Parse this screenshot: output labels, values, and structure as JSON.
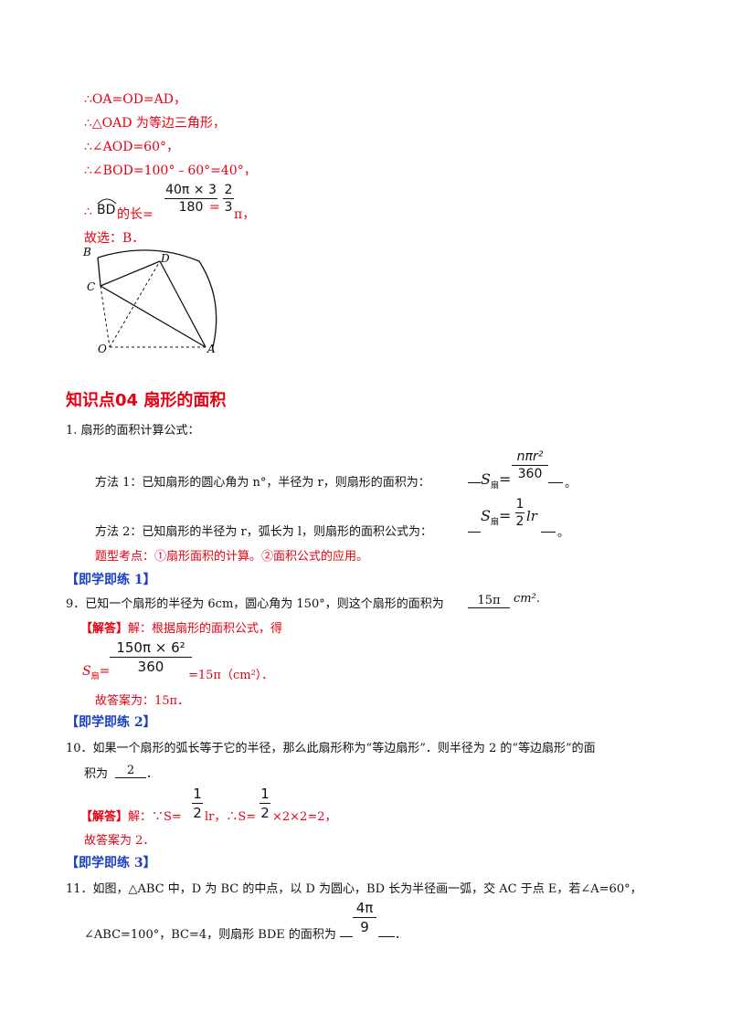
{
  "solution_prev": {
    "line1": "∴OA=OD=AD，",
    "line2": "∴△OAD 为等边三角形，",
    "line3": "∴∠AOD=60°，",
    "line4": "∴∠BOD=100°﹣60°=40°，",
    "arc_prefix": "∴",
    "arc_label": "BD",
    "arc_mid": "的长=",
    "arc_num": "40π × 3",
    "arc_den": "180",
    "arc_eq": "=",
    "arc_num2": "2",
    "arc_den2": "3",
    "arc_tail": "π，",
    "choice": "故选：B．"
  },
  "figure": {
    "labels": {
      "B": "B",
      "D": "D",
      "C": "C",
      "O": "O",
      "A": "A"
    }
  },
  "section": {
    "title": "知识点04   扇形的面积"
  },
  "formula": {
    "heading": "1. 扇形的面积计算公式：",
    "method1": "方法 1：已知扇形的圆心角为 n°，半径为 r，则扇形的面积为：",
    "method1_S": "S",
    "method1_sub": "扇",
    "method1_eq": "=",
    "method1_num": "nπr²",
    "method1_den": "360",
    "method1_end": "。",
    "method2": "方法 2：已知扇形的半径为 r，弧长为 l，则扇形的面积公式为：",
    "method2_S": "S",
    "method2_sub": "扇",
    "method2_eq": "=",
    "method2_num": "1",
    "method2_den": "2",
    "method2_lr": "lr",
    "method2_end": "。",
    "points": "题型考点：①扇形面积的计算。②面积公式的应用。"
  },
  "practice1": {
    "tag": "【即学即练 1】",
    "question": "9．已知一个扇形的半径为 6cm，圆心角为 150°，则这个扇形的面积为",
    "answer": "15π",
    "unit": "cm².",
    "sol_tag": "【解答】",
    "sol_text": "解：根据扇形的面积公式，得",
    "S_label": "S",
    "S_sub": "扇",
    "S_eq": "=",
    "frac_num": "150π × 6²",
    "frac_den": "360",
    "result": "=15π（cm²）．",
    "final": "故答案为：15π．"
  },
  "practice2": {
    "tag": "【即学即练 2】",
    "question_line1": "10．如果一个扇形的弧长等于它的半径，那么此扇形称为“等边扇形”．则半径为 2 的“等边扇形”的面",
    "question_line2": "积为",
    "answer": "2",
    "end": "．",
    "sol_tag": "【解答】",
    "sol_prefix": "解：∵S=",
    "f1_num": "1",
    "f1_den": "2",
    "sol_mid": "lr，∴S=",
    "f2_num": "1",
    "f2_den": "2",
    "sol_tail": "×2×2=2，",
    "final": "故答案为 2．"
  },
  "practice3": {
    "tag": "【即学即练 3】",
    "question_line1": "11．如图，△ABC 中，D 为 BC 的中点，以 D 为圆心，BD 长为半径画一弧，交 AC 于点 E，若∠A=60°，",
    "question_line2": "∠ABC=100°，BC=4，则扇形 BDE 的面积为",
    "ans_num": "4π",
    "ans_den": "9",
    "end": "．"
  }
}
